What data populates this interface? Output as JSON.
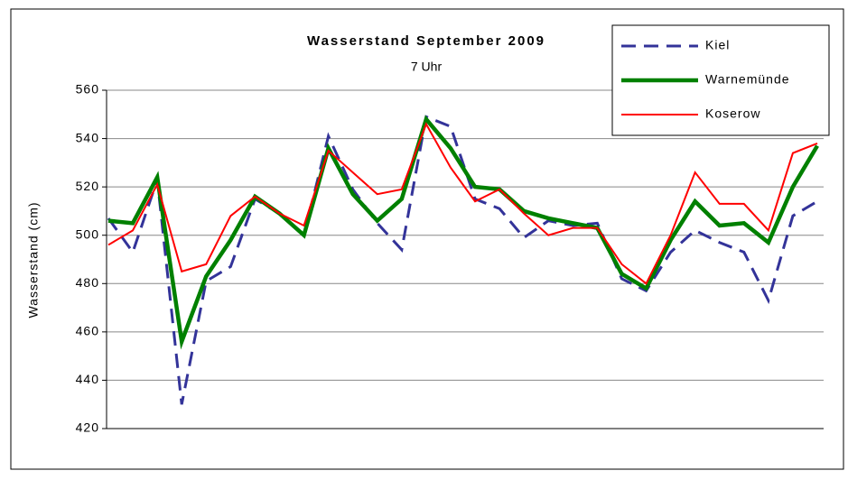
{
  "chart_data": {
    "type": "line",
    "title": "Wasserstand September 2009",
    "subtitle": "7 Uhr",
    "y_label": "Wasserstand (cm)",
    "ylim": [
      420,
      560
    ],
    "yticks": [
      420,
      440,
      460,
      480,
      500,
      520,
      540,
      560
    ],
    "grid": true,
    "legend": "top-right",
    "series": [
      {
        "name": "Kiel",
        "color": "#333399",
        "dash": true,
        "values": [
          507,
          493,
          523,
          430,
          481,
          487,
          515,
          509,
          500,
          541,
          519,
          505,
          494,
          549,
          545,
          515,
          511,
          499,
          506,
          504,
          505,
          482,
          477,
          493,
          502,
          497,
          493,
          473,
          508,
          514
        ]
      },
      {
        "name": "Warnemünde",
        "color": "#008000",
        "values": [
          506,
          505,
          524,
          456,
          483,
          498,
          516,
          509,
          500,
          536,
          517,
          506,
          515,
          548,
          536,
          520,
          519,
          510,
          507,
          505,
          503,
          484,
          478,
          498,
          514,
          504,
          505,
          497,
          520,
          537
        ]
      },
      {
        "name": "Koserow",
        "color": "#ff0000",
        "values": [
          496,
          502,
          521,
          485,
          488,
          508,
          516,
          509,
          504,
          535,
          526,
          517,
          519,
          546,
          528,
          514,
          519,
          509,
          500,
          503,
          503,
          488,
          480,
          500,
          526,
          513,
          513,
          502,
          534,
          538
        ]
      }
    ]
  }
}
